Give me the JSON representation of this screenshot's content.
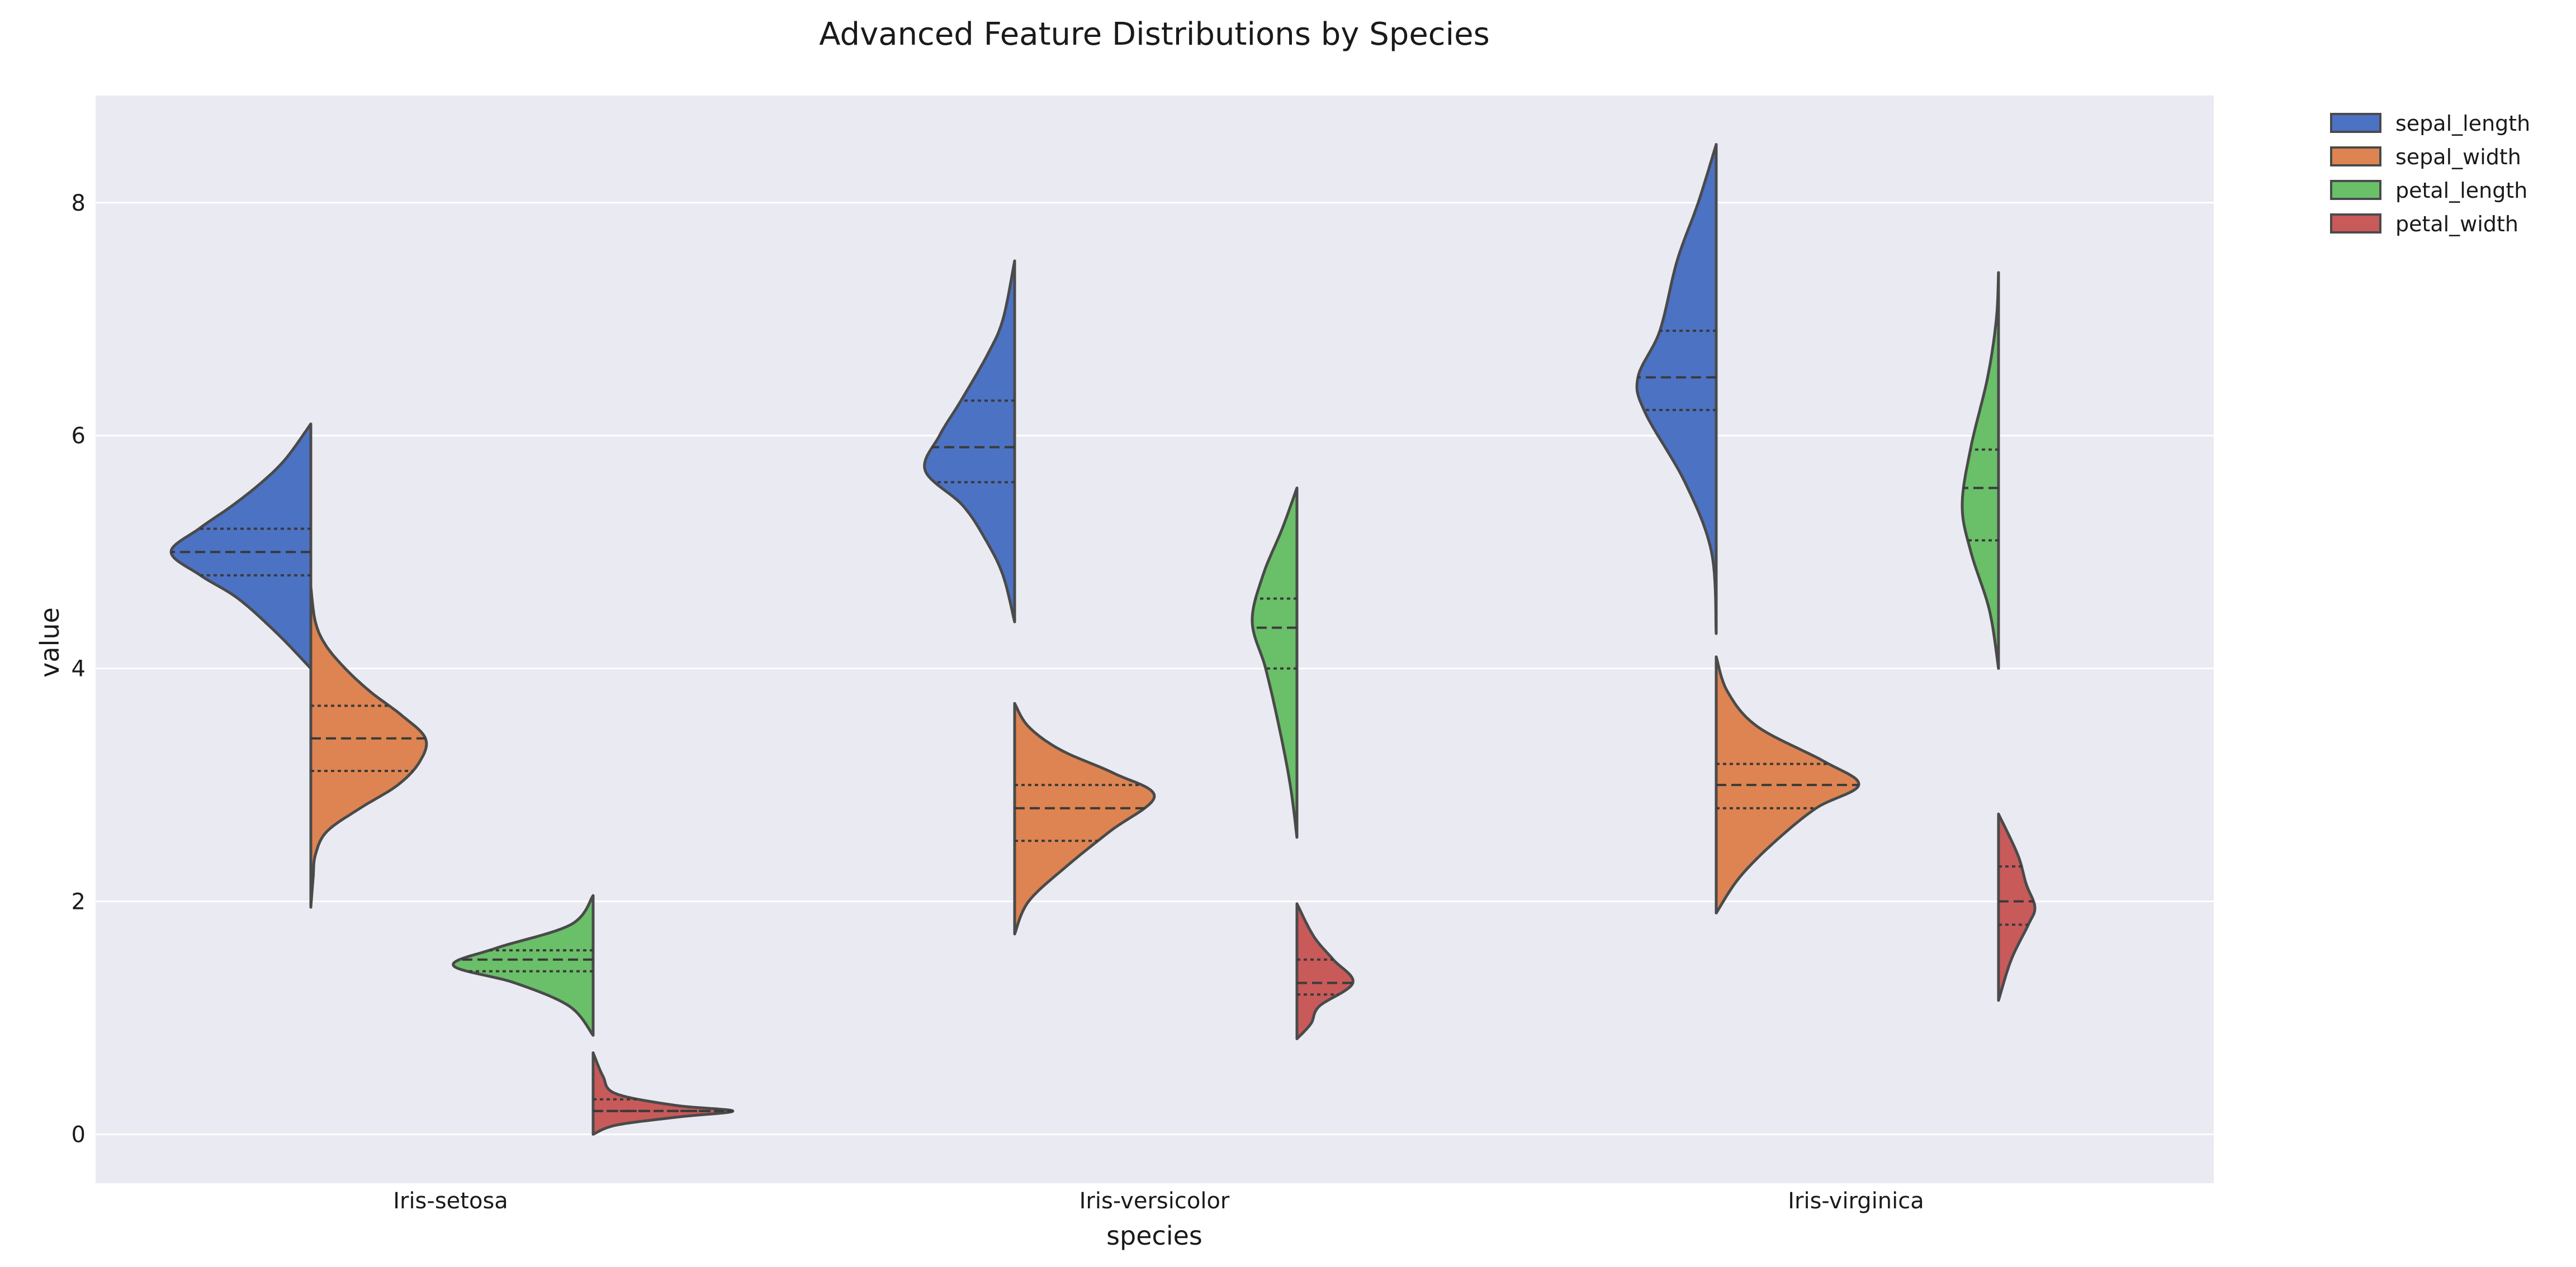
{
  "chart_data": {
    "type": "violin",
    "title": "Advanced Feature Distributions by Species",
    "xlabel": "species",
    "ylabel": "value",
    "categories": [
      "Iris-setosa",
      "Iris-versicolor",
      "Iris-virginica"
    ],
    "y_ticks": [
      0,
      2,
      4,
      6,
      8
    ],
    "ylim": [
      -0.42,
      8.92
    ],
    "grid": true,
    "legend_position": "outside-top-right",
    "inner": "quartile",
    "split_violins": true,
    "series": [
      {
        "name": "sepal_length",
        "color": "#4c72c4"
      },
      {
        "name": "sepal_width",
        "color": "#dd8452"
      },
      {
        "name": "petal_length",
        "color": "#6abf69"
      },
      {
        "name": "petal_width",
        "color": "#c85a5a"
      }
    ],
    "violins": [
      {
        "species": "Iris-setosa",
        "feature": "sepal_length",
        "side": "left",
        "min": 4.0,
        "max": 6.1,
        "q1": 4.8,
        "median": 5.0,
        "q3": 5.2,
        "profile": [
          [
            4.0,
            0.0
          ],
          [
            4.3,
            0.24
          ],
          [
            4.6,
            0.52
          ],
          [
            4.8,
            0.79
          ],
          [
            5.0,
            1.0
          ],
          [
            5.2,
            0.8
          ],
          [
            5.4,
            0.56
          ],
          [
            5.6,
            0.35
          ],
          [
            5.8,
            0.18
          ],
          [
            6.1,
            0.0
          ]
        ]
      },
      {
        "species": "Iris-setosa",
        "feature": "sepal_width",
        "side": "right",
        "min": 1.9,
        "max": 4.8,
        "q1": 3.12,
        "median": 3.4,
        "q3": 3.68,
        "profile": [
          [
            1.95,
            0.0
          ],
          [
            2.2,
            0.02
          ],
          [
            2.4,
            0.04
          ],
          [
            2.6,
            0.14
          ],
          [
            2.8,
            0.43
          ],
          [
            3.0,
            0.76
          ],
          [
            3.2,
            0.95
          ],
          [
            3.4,
            1.0
          ],
          [
            3.6,
            0.79
          ],
          [
            3.8,
            0.52
          ],
          [
            4.0,
            0.3
          ],
          [
            4.2,
            0.13
          ],
          [
            4.4,
            0.04
          ],
          [
            4.7,
            0.0
          ]
        ]
      },
      {
        "species": "Iris-setosa",
        "feature": "petal_length",
        "side": "left",
        "min": 0.85,
        "max": 2.05,
        "q1": 1.4,
        "median": 1.5,
        "q3": 1.58,
        "profile": [
          [
            0.85,
            0.0
          ],
          [
            1.1,
            0.17
          ],
          [
            1.3,
            0.56
          ],
          [
            1.45,
            1.0
          ],
          [
            1.6,
            0.69
          ],
          [
            1.8,
            0.16
          ],
          [
            2.05,
            0.0
          ]
        ]
      },
      {
        "species": "Iris-setosa",
        "feature": "petal_width",
        "side": "right",
        "min": 0.0,
        "max": 0.7,
        "q1": 0.2,
        "median": 0.2,
        "q3": 0.3,
        "profile": [
          [
            0.0,
            0.0
          ],
          [
            0.08,
            0.17
          ],
          [
            0.15,
            0.62
          ],
          [
            0.2,
            1.0
          ],
          [
            0.25,
            0.58
          ],
          [
            0.35,
            0.16
          ],
          [
            0.5,
            0.07
          ],
          [
            0.7,
            0.0
          ]
        ]
      },
      {
        "species": "Iris-versicolor",
        "feature": "sepal_length",
        "side": "left",
        "min": 4.4,
        "max": 7.5,
        "q1": 5.6,
        "median": 5.9,
        "q3": 6.3,
        "profile": [
          [
            4.4,
            0.0
          ],
          [
            4.8,
            0.13
          ],
          [
            5.1,
            0.32
          ],
          [
            5.4,
            0.58
          ],
          [
            5.7,
            1.0
          ],
          [
            6.0,
            0.84
          ],
          [
            6.3,
            0.6
          ],
          [
            6.7,
            0.3
          ],
          [
            7.0,
            0.13
          ],
          [
            7.5,
            0.0
          ]
        ]
      },
      {
        "species": "Iris-versicolor",
        "feature": "sepal_width",
        "side": "right",
        "min": 1.7,
        "max": 3.7,
        "q1": 2.52,
        "median": 2.8,
        "q3": 3.0,
        "profile": [
          [
            1.72,
            0.0
          ],
          [
            2.0,
            0.1
          ],
          [
            2.3,
            0.37
          ],
          [
            2.6,
            0.68
          ],
          [
            2.9,
            1.0
          ],
          [
            3.1,
            0.71
          ],
          [
            3.3,
            0.33
          ],
          [
            3.5,
            0.1
          ],
          [
            3.7,
            0.0
          ]
        ]
      },
      {
        "species": "Iris-versicolor",
        "feature": "petal_length",
        "side": "left",
        "min": 2.55,
        "max": 5.55,
        "q1": 4.0,
        "median": 4.35,
        "q3": 4.6,
        "profile": [
          [
            2.55,
            0.0
          ],
          [
            3.0,
            0.15
          ],
          [
            3.5,
            0.4
          ],
          [
            4.0,
            0.7
          ],
          [
            4.4,
            1.0
          ],
          [
            4.8,
            0.76
          ],
          [
            5.2,
            0.33
          ],
          [
            5.55,
            0.0
          ]
        ]
      },
      {
        "species": "Iris-versicolor",
        "feature": "petal_width",
        "side": "right",
        "min": 0.82,
        "max": 1.98,
        "q1": 1.2,
        "median": 1.3,
        "q3": 1.5,
        "profile": [
          [
            0.82,
            0.0
          ],
          [
            0.95,
            0.25
          ],
          [
            1.1,
            0.4
          ],
          [
            1.3,
            1.0
          ],
          [
            1.5,
            0.65
          ],
          [
            1.7,
            0.3
          ],
          [
            1.98,
            0.0
          ]
        ]
      },
      {
        "species": "Iris-virginica",
        "feature": "sepal_length",
        "side": "left",
        "min": 4.3,
        "max": 8.5,
        "q1": 6.22,
        "median": 6.5,
        "q3": 6.9,
        "profile": [
          [
            4.3,
            0.0
          ],
          [
            5.0,
            0.06
          ],
          [
            5.6,
            0.4
          ],
          [
            6.2,
            0.91
          ],
          [
            6.5,
            1.0
          ],
          [
            6.9,
            0.72
          ],
          [
            7.5,
            0.5
          ],
          [
            8.0,
            0.23
          ],
          [
            8.5,
            0.0
          ]
        ]
      },
      {
        "species": "Iris-virginica",
        "feature": "sepal_width",
        "side": "right",
        "min": 1.9,
        "max": 4.1,
        "q1": 2.8,
        "median": 3.0,
        "q3": 3.18,
        "profile": [
          [
            1.9,
            0.0
          ],
          [
            2.2,
            0.16
          ],
          [
            2.5,
            0.4
          ],
          [
            2.8,
            0.7
          ],
          [
            3.0,
            1.0
          ],
          [
            3.2,
            0.76
          ],
          [
            3.5,
            0.29
          ],
          [
            3.8,
            0.08
          ],
          [
            4.1,
            0.0
          ]
        ]
      },
      {
        "species": "Iris-virginica",
        "feature": "petal_length",
        "side": "left",
        "min": 4.0,
        "max": 7.4,
        "q1": 5.1,
        "median": 5.55,
        "q3": 5.88,
        "profile": [
          [
            4.0,
            0.0
          ],
          [
            4.5,
            0.25
          ],
          [
            5.0,
            0.76
          ],
          [
            5.4,
            1.0
          ],
          [
            5.9,
            0.76
          ],
          [
            6.5,
            0.3
          ],
          [
            7.0,
            0.06
          ],
          [
            7.4,
            0.0
          ]
        ]
      },
      {
        "species": "Iris-virginica",
        "feature": "petal_width",
        "side": "right",
        "min": 1.15,
        "max": 2.75,
        "q1": 1.8,
        "median": 2.0,
        "q3": 2.3,
        "profile": [
          [
            1.15,
            0.0
          ],
          [
            1.5,
            0.35
          ],
          [
            1.8,
            0.82
          ],
          [
            1.95,
            1.0
          ],
          [
            2.15,
            0.76
          ],
          [
            2.4,
            0.53
          ],
          [
            2.75,
            0.0
          ]
        ]
      }
    ]
  }
}
